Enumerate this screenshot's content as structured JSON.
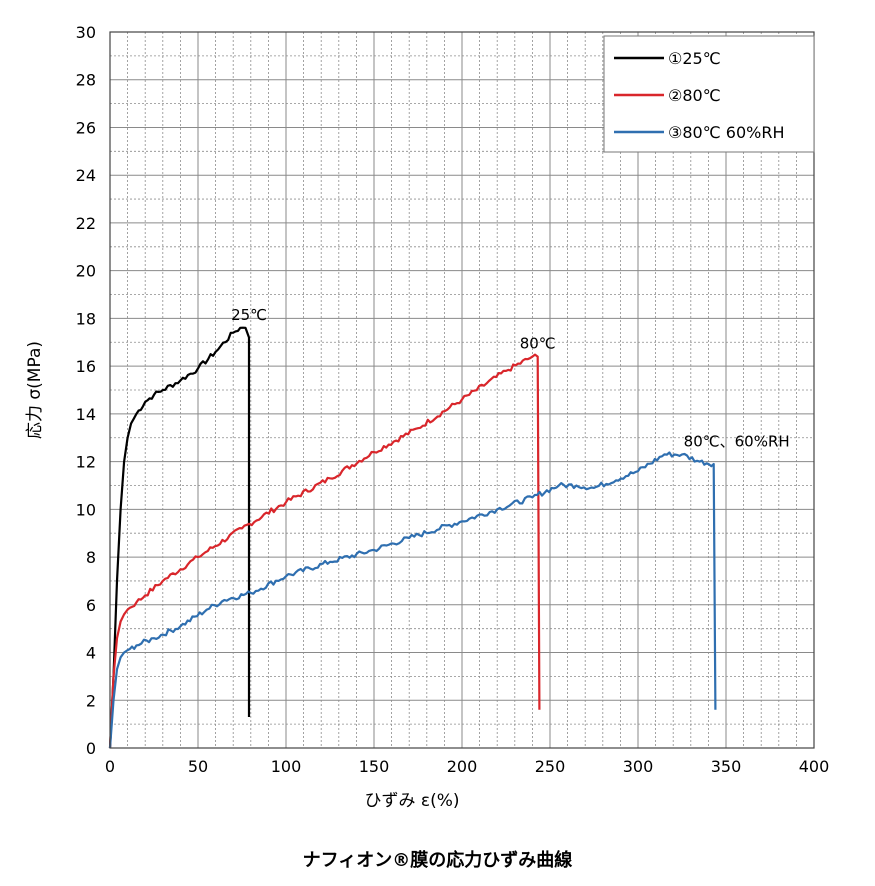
{
  "caption": "ナフィオン®膜の応力ひずみ曲線",
  "chart_data": {
    "type": "line",
    "xlabel": "ひずみ ε(%)",
    "ylabel": "応力 σ(MPa)",
    "xlim": [
      0,
      400
    ],
    "ylim": [
      0,
      30
    ],
    "xticks": [
      0,
      50,
      100,
      150,
      200,
      250,
      300,
      350,
      400
    ],
    "yticks": [
      0,
      2,
      4,
      6,
      8,
      10,
      12,
      14,
      16,
      18,
      20,
      22,
      24,
      26,
      28,
      30
    ],
    "grid": true,
    "legend_position": "top-right",
    "series": [
      {
        "name": "①25℃",
        "color": "#000000",
        "annotation": "25℃",
        "points": [
          [
            0,
            0
          ],
          [
            2,
            3
          ],
          [
            4,
            7
          ],
          [
            6,
            10
          ],
          [
            8,
            12
          ],
          [
            10,
            13
          ],
          [
            12,
            13.6
          ],
          [
            15,
            14
          ],
          [
            20,
            14.5
          ],
          [
            25,
            14.8
          ],
          [
            30,
            15
          ],
          [
            40,
            15.4
          ],
          [
            50,
            15.9
          ],
          [
            60,
            16.6
          ],
          [
            70,
            17.4
          ],
          [
            74,
            17.6
          ],
          [
            77,
            17.6
          ],
          [
            79,
            17.2
          ],
          [
            79,
            1.3
          ]
        ]
      },
      {
        "name": "②80℃",
        "color": "#d9262b",
        "annotation": "80℃",
        "points": [
          [
            0,
            0
          ],
          [
            2,
            3
          ],
          [
            4,
            4.6
          ],
          [
            6,
            5.3
          ],
          [
            8,
            5.6
          ],
          [
            10,
            5.8
          ],
          [
            15,
            6.1
          ],
          [
            20,
            6.4
          ],
          [
            30,
            7
          ],
          [
            50,
            8
          ],
          [
            75,
            9.2
          ],
          [
            100,
            10.3
          ],
          [
            125,
            11.3
          ],
          [
            150,
            12.4
          ],
          [
            175,
            13.4
          ],
          [
            200,
            14.6
          ],
          [
            225,
            15.8
          ],
          [
            240,
            16.4
          ],
          [
            243,
            16.4
          ],
          [
            244,
            1.6
          ]
        ]
      },
      {
        "name": "③80℃ 60%RH",
        "color": "#2f6fb0",
        "annotation": "80℃、60%RH",
        "points": [
          [
            0,
            0
          ],
          [
            2,
            2
          ],
          [
            4,
            3.3
          ],
          [
            6,
            3.8
          ],
          [
            8,
            4
          ],
          [
            10,
            4.1
          ],
          [
            15,
            4.3
          ],
          [
            25,
            4.6
          ],
          [
            40,
            5.1
          ],
          [
            55,
            5.8
          ],
          [
            65,
            6.2
          ],
          [
            80,
            6.5
          ],
          [
            100,
            7.2
          ],
          [
            125,
            7.8
          ],
          [
            150,
            8.3
          ],
          [
            170,
            8.8
          ],
          [
            200,
            9.5
          ],
          [
            220,
            10
          ],
          [
            240,
            10.5
          ],
          [
            255,
            11
          ],
          [
            265,
            11
          ],
          [
            275,
            10.9
          ],
          [
            300,
            11.6
          ],
          [
            315,
            12.3
          ],
          [
            325,
            12.3
          ],
          [
            335,
            12
          ],
          [
            343,
            11.9
          ],
          [
            344,
            1.6
          ]
        ]
      }
    ]
  }
}
